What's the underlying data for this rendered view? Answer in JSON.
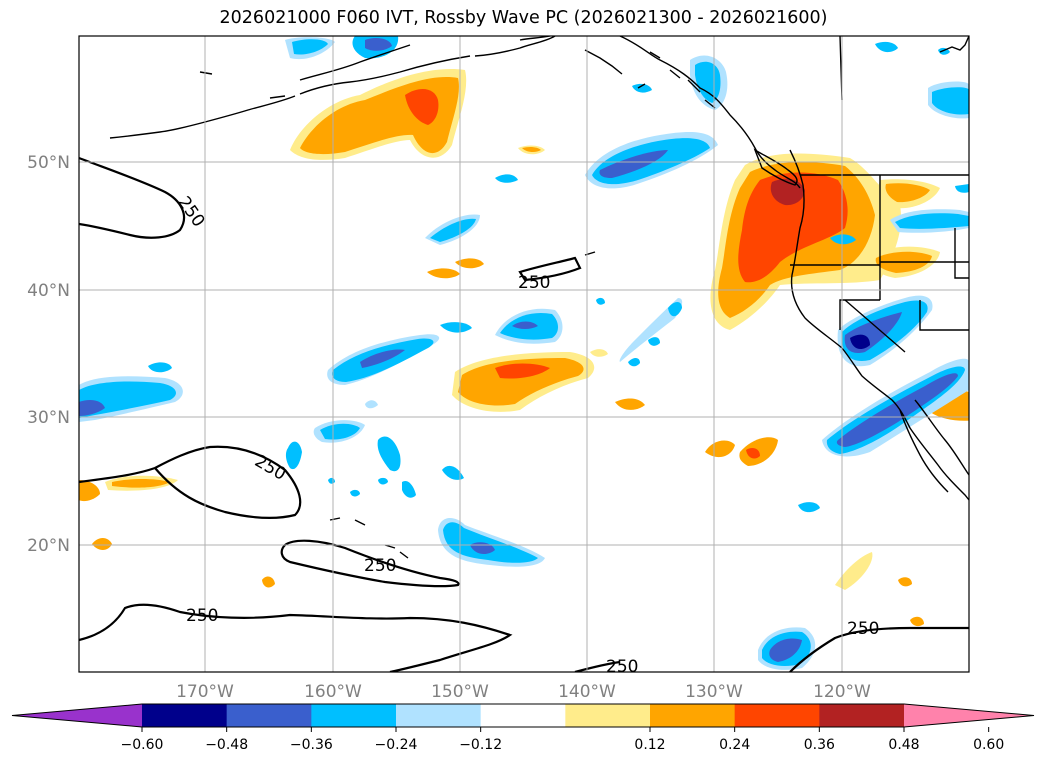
{
  "title": "2026021000 F060 IVT, Rossby Wave PC (2026021300 - 2026021600)",
  "latitude_labels": [
    "50°N",
    "40°N",
    "30°N",
    "20°N"
  ],
  "longitude_labels": [
    "170°W",
    "160°W",
    "150°W",
    "140°W",
    "130°W",
    "120°W"
  ],
  "contour_label": "250",
  "colorbar": {
    "ticks": [
      "−0.60",
      "−0.48",
      "−0.36",
      "−0.24",
      "−0.12",
      "0.12",
      "0.24",
      "0.36",
      "0.48",
      "0.60"
    ],
    "colors": {
      "under": "#9932cc",
      "c1": "#00008b",
      "c2": "#3a5fcd",
      "c3": "#00bfff",
      "c4": "#b0e2ff",
      "c5": "#ffffff",
      "c6": "#ffec8b",
      "c7": "#ffa500",
      "c8": "#ff4500",
      "c9": "#b22222",
      "over": "#ff82ab"
    }
  }
}
